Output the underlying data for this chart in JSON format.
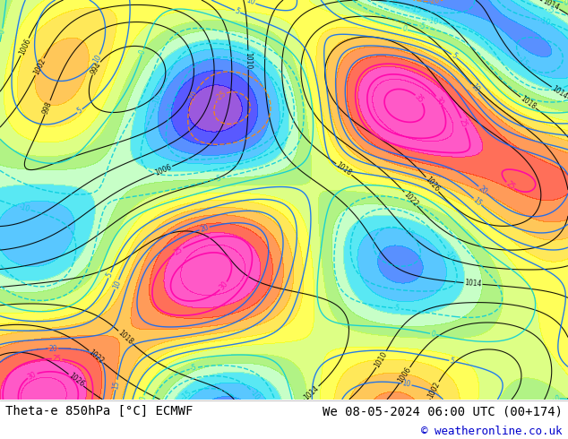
{
  "title_left": "Theta-e 850hPa [°C] ECMWF",
  "title_right": "We 08-05-2024 06:00 UTC (00+174)",
  "copyright": "© weatheronline.co.uk",
  "bg_color": "#ffffff",
  "map_bg": "#d0e8f0",
  "label_color_left": "#000000",
  "label_color_right": "#000000",
  "copyright_color": "#0000cc",
  "bottom_bar_color": "#ffffff",
  "font_size_title": 10,
  "font_size_copy": 9,
  "fig_width": 6.34,
  "fig_height": 4.9,
  "dpi": 100
}
